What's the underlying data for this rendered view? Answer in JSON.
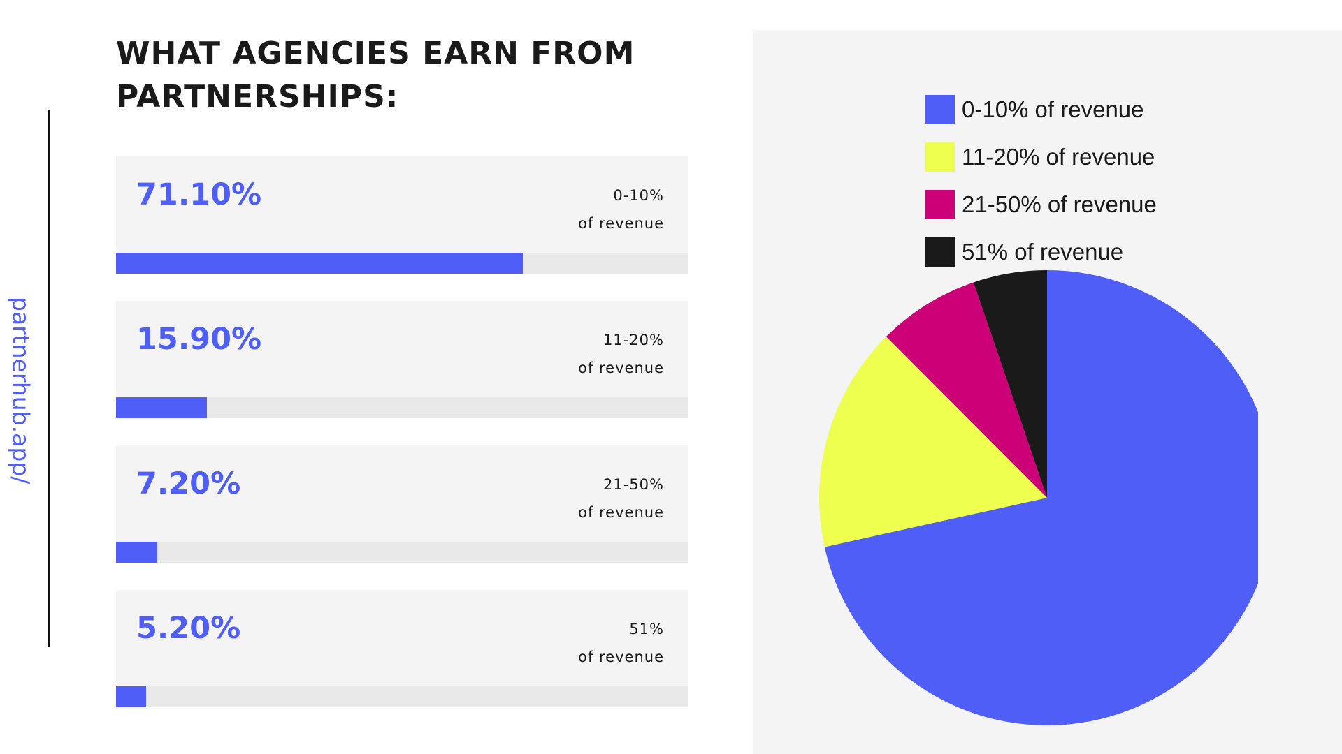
{
  "site_url": "partnerhub.app/",
  "title": "WHAT AGENCIES EARN FROM PARTNERSHIPS:",
  "colors": {
    "accent": "#4f5ef7",
    "yellow": "#eeff4f",
    "magenta": "#cc0077",
    "black": "#1a1a1a",
    "panel": "#f4f4f4",
    "track": "#e9e9e9"
  },
  "stats": [
    {
      "percent": "71.10%",
      "range": "0-10%",
      "suffix": "of revenue",
      "value": 71.1
    },
    {
      "percent": "15.90%",
      "range": "11-20%",
      "suffix": "of revenue",
      "value": 15.9
    },
    {
      "percent": "7.20%",
      "range": "21-50%",
      "suffix": "of revenue",
      "value": 7.2
    },
    {
      "percent": "5.20%",
      "range": "51%",
      "suffix": "of revenue",
      "value": 5.2
    }
  ],
  "chart_data": [
    {
      "type": "bar",
      "orientation": "horizontal",
      "categories": [
        "0-10% of revenue",
        "11-20% of revenue",
        "21-50% of revenue",
        "51% of revenue"
      ],
      "values": [
        71.1,
        15.9,
        7.2,
        5.2
      ],
      "title": "WHAT AGENCIES EARN FROM PARTNERSHIPS:",
      "xlim": [
        0,
        100
      ],
      "grid": false
    },
    {
      "type": "pie",
      "labels": [
        "0-10% of revenue",
        "11-20% of revenue",
        "21-50% of revenue",
        "51% of revenue"
      ],
      "values": [
        71.1,
        15.9,
        7.2,
        5.2
      ],
      "colors": [
        "#4f5ef7",
        "#eeff4f",
        "#cc0077",
        "#1a1a1a"
      ],
      "legend_position": "top-right",
      "grid": false
    }
  ]
}
